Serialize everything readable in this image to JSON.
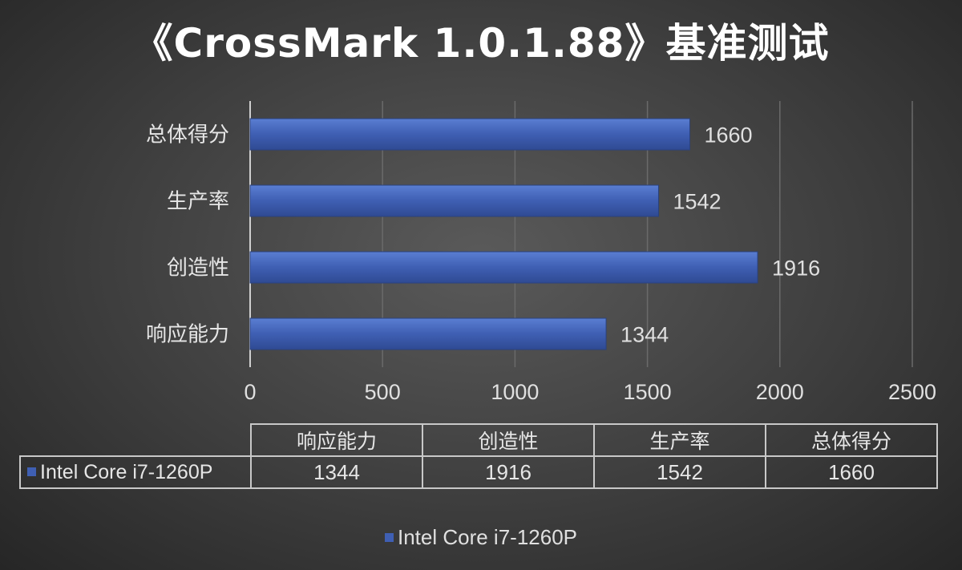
{
  "chart_data": {
    "type": "bar",
    "orientation": "horizontal",
    "title": "《CrossMark 1.0.1.88》基准测试",
    "categories": [
      "响应能力",
      "创造性",
      "生产率",
      "总体得分"
    ],
    "series": [
      {
        "name": "Intel Core i7-1260P",
        "values": [
          1344,
          1916,
          1542,
          1660
        ],
        "color": "#3f5fb3"
      }
    ],
    "xlim": [
      0,
      2500
    ],
    "xticks": [
      "0",
      "500",
      "1000",
      "1500",
      "2000",
      "2500"
    ],
    "grid": true,
    "data_labels": [
      "1344",
      "1916",
      "1542",
      "1660"
    ],
    "legend_position": "bottom",
    "data_table": {
      "headers": [
        "响应能力",
        "创造性",
        "生产率",
        "总体得分"
      ],
      "row_label": "Intel Core i7-1260P",
      "values": [
        "1344",
        "1916",
        "1542",
        "1660"
      ]
    }
  },
  "legend_label": "Intel Core i7-1260P"
}
